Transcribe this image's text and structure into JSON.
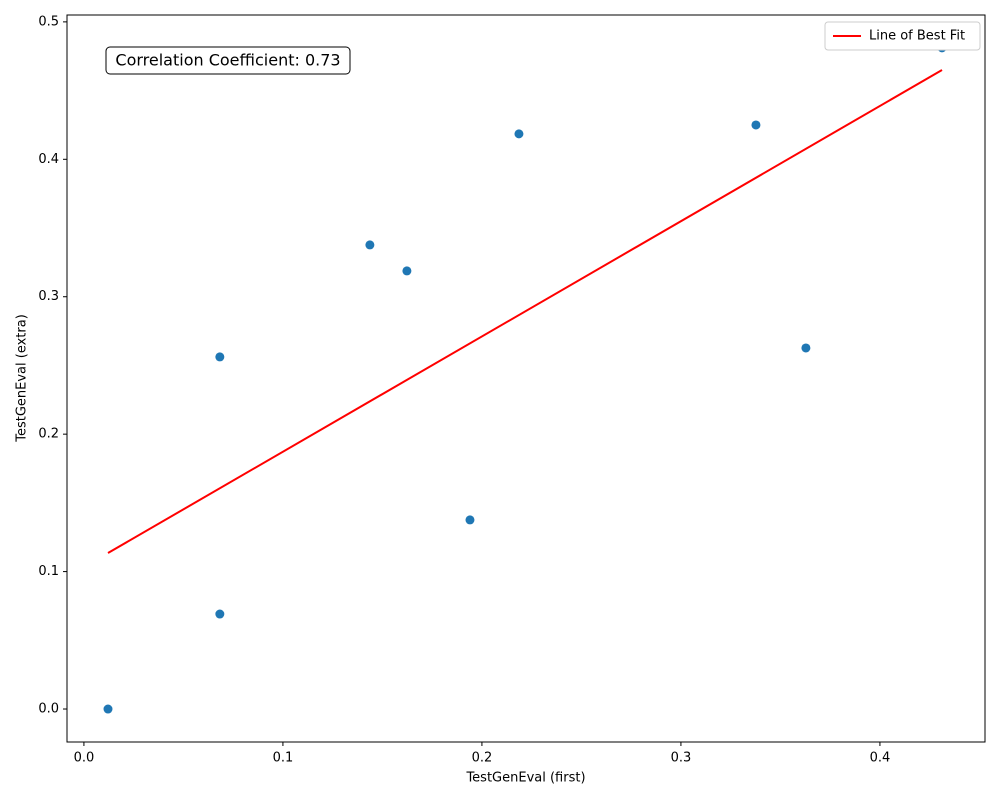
{
  "chart_data": {
    "type": "scatter",
    "xlabel": "TestGenEval (first)",
    "ylabel": "TestGenEval (extra)",
    "annotation": "Correlation Coefficient: 0.73",
    "xlim": [
      -0.0085,
      0.4528
    ],
    "ylim": [
      -0.024,
      0.505
    ],
    "xticks": [
      {
        "value": 0,
        "label": "0.0"
      },
      0.1,
      0.2,
      0.3,
      0.4
    ],
    "yticks": [
      {
        "value": 0,
        "label": "0.0"
      },
      0.1,
      0.2,
      0.3,
      0.4,
      0.5
    ],
    "legend": "upper right",
    "series": [
      {
        "color": "#1f77b4",
        "kind": "points",
        "x": [
          0.0121,
          0.0683,
          0.0683,
          0.1437,
          0.1623,
          0.194,
          0.2186,
          0.3377,
          0.3628,
          0.4312
        ],
        "values": [
          0,
          0.0691,
          0.2562,
          0.3377,
          0.3188,
          0.1376,
          0.4185,
          0.425,
          0.2627,
          0.4811
        ]
      },
      {
        "name": "Line of Best Fit",
        "color": "#ff0000",
        "kind": "line",
        "x": [
          0.0121,
          0.4312
        ],
        "values": [
          0.1135,
          0.465
        ]
      }
    ]
  }
}
